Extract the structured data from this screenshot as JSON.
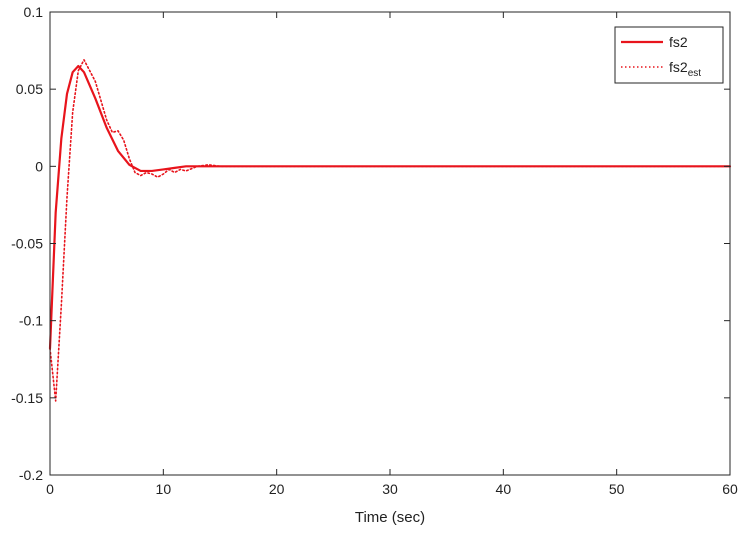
{
  "chart_data": {
    "type": "line",
    "title": "",
    "xlabel": "Time (sec)",
    "ylabel": "",
    "xlim": [
      0,
      60
    ],
    "ylim": [
      -0.2,
      0.1
    ],
    "x_ticks": [
      0,
      10,
      20,
      30,
      40,
      50,
      60
    ],
    "x_tick_labels": [
      "0",
      "10",
      "20",
      "30",
      "40",
      "50",
      "60"
    ],
    "y_ticks": [
      -0.2,
      -0.15,
      -0.1,
      -0.05,
      0,
      0.05,
      0.1
    ],
    "y_tick_labels": [
      "-0.2",
      "-0.15",
      "-0.1",
      "-0.05",
      "0",
      "0.05",
      "0.1"
    ],
    "grid": false,
    "legend_position": "top-right",
    "series": [
      {
        "name": "fs2",
        "name_sub": "",
        "color": "#e8141c",
        "line_style": "solid",
        "x": [
          0,
          0.5,
          1,
          1.5,
          2,
          2.5,
          3,
          4,
          5,
          6,
          7,
          8,
          9,
          10,
          11,
          12,
          14,
          16,
          18,
          20,
          30,
          40,
          50,
          60
        ],
        "y": [
          -0.118,
          -0.03,
          0.018,
          0.047,
          0.061,
          0.065,
          0.061,
          0.044,
          0.025,
          0.01,
          0.001,
          -0.003,
          -0.003,
          -0.002,
          -0.001,
          0,
          0,
          0,
          0,
          0,
          0,
          0,
          0,
          0
        ]
      },
      {
        "name": "fs2",
        "name_sub": "est",
        "color": "#e8141c",
        "line_style": "dotted",
        "x": [
          0,
          0.5,
          1,
          1.5,
          2,
          2.5,
          3,
          4,
          5,
          5.5,
          6,
          6.5,
          7,
          7.5,
          8,
          8.5,
          9,
          9.5,
          10,
          10.5,
          11,
          11.5,
          12,
          13,
          14,
          15,
          16,
          17,
          18,
          20,
          30,
          40,
          50,
          60
        ],
        "y": [
          -0.118,
          -0.152,
          -0.09,
          -0.02,
          0.035,
          0.062,
          0.069,
          0.055,
          0.03,
          0.022,
          0.023,
          0.017,
          0.005,
          -0.004,
          -0.006,
          -0.004,
          -0.005,
          -0.007,
          -0.005,
          -0.002,
          -0.004,
          -0.002,
          -0.003,
          0,
          0.001,
          0,
          0,
          0,
          0,
          0,
          0,
          0,
          0,
          0
        ]
      }
    ]
  }
}
